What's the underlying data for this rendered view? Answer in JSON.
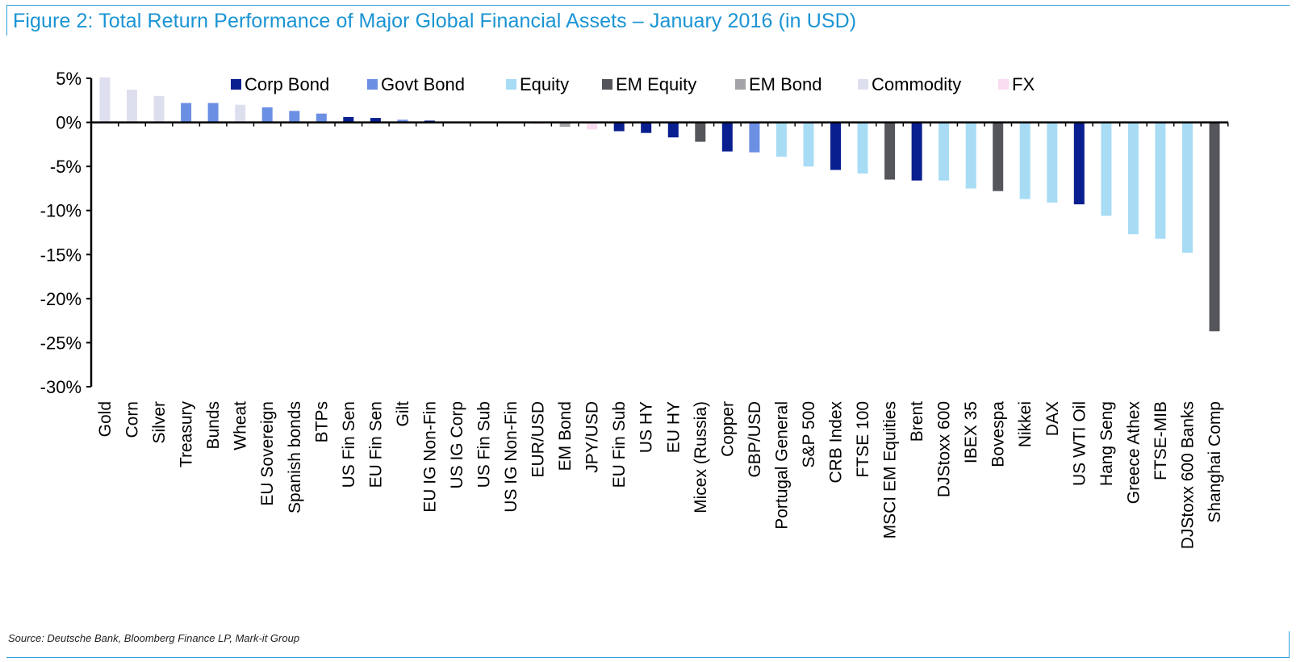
{
  "title": "Figure 2: Total Return Performance of Major Global Financial Assets – January 2016 (in USD)",
  "source": "Source: Deutsche Bank, Bloomberg Finance LP, Mark-it Group",
  "colors": {
    "frame": "#2a9fd6",
    "title": "#1a94d4",
    "Corp Bond": "#0a1f8f",
    "Govt Bond": "#6b8fe3",
    "Equity": "#a8dcf5",
    "EM Equity": "#55565c",
    "EM Bond": "#a4a4a8",
    "Commodity": "#dedfee",
    "FX": "#f9dcf0"
  },
  "chart_data": {
    "type": "bar",
    "ylim": [
      -30,
      5
    ],
    "yticks": [
      5,
      0,
      -5,
      -10,
      -15,
      -20,
      -25,
      -30
    ],
    "ytick_labels": [
      "5%",
      "0%",
      "-5%",
      "-10%",
      "-15%",
      "-20%",
      "-25%",
      "-30%"
    ],
    "legend_position": "top",
    "legend": [
      "Corp Bond",
      "Govt Bond",
      "Equity",
      "EM Equity",
      "EM Bond",
      "Commodity",
      "FX"
    ],
    "categories": [
      "Gold",
      "Corn",
      "Silver",
      "Treasury",
      "Bunds",
      "Wheat",
      "EU Sovereign",
      "Spanish bonds",
      "BTPs",
      "US Fin Sen",
      "EU Fin Sen",
      "Gilt",
      "EU IG Non-Fin",
      "US IG Corp",
      "US Fin Sub",
      "US IG Non-Fin",
      "EUR/USD",
      "EM Bond",
      "JPY/USD",
      "EU Fin Sub",
      "US HY",
      "EU HY",
      "Micex (Russia)",
      "Copper",
      "GBP/USD",
      "Portugal General",
      "S&P 500",
      "CRB Index",
      "FTSE 100",
      "MSCI EM Equities",
      "Brent",
      "DJStoxx 600",
      "IBEX 35",
      "Bovespa",
      "Nikkei",
      "DAX",
      "US WTI Oil",
      "Hang Seng",
      "Greece Athex",
      "FTSE-MIB",
      "DJStoxx 600 Banks",
      "Shanghai Comp"
    ],
    "values": [
      5.1,
      3.7,
      3.0,
      2.2,
      2.2,
      2.0,
      1.7,
      1.3,
      1.0,
      0.6,
      0.5,
      0.3,
      0.2,
      0.1,
      0.05,
      0.0,
      -0.2,
      -0.5,
      -0.8,
      -1.0,
      -1.2,
      -1.7,
      -2.2,
      -3.3,
      -3.4,
      -3.9,
      -5.0,
      -5.4,
      -5.8,
      -6.5,
      -6.6,
      -6.6,
      -7.5,
      -7.8,
      -8.7,
      -9.1,
      -9.3,
      -10.6,
      -12.7,
      -13.2,
      -14.8,
      -23.7
    ],
    "groups": [
      "Commodity",
      "Commodity",
      "Commodity",
      "Govt Bond",
      "Govt Bond",
      "Commodity",
      "Govt Bond",
      "Govt Bond",
      "Govt Bond",
      "Corp Bond",
      "Corp Bond",
      "Govt Bond",
      "Corp Bond",
      "Corp Bond",
      "Corp Bond",
      "Corp Bond",
      "FX",
      "EM Bond",
      "FX",
      "Corp Bond",
      "Corp Bond",
      "Corp Bond",
      "EM Equity",
      "Corp Bond",
      "Govt Bond",
      "Equity",
      "Equity",
      "Corp Bond",
      "Equity",
      "EM Equity",
      "Corp Bond",
      "Equity",
      "Equity",
      "EM Equity",
      "Equity",
      "Equity",
      "Corp Bond",
      "Equity",
      "Equity",
      "Equity",
      "Equity",
      "EM Equity"
    ]
  }
}
